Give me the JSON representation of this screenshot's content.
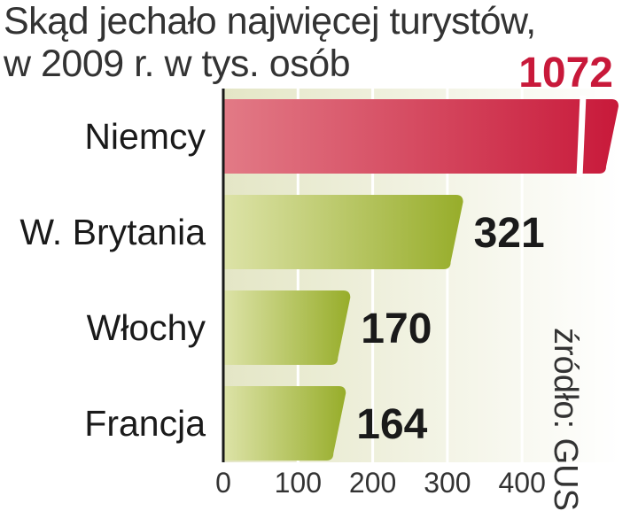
{
  "header": {
    "title_line1": "Skąd jechało najwięcej turystów,",
    "title_line2": "w 2009 r. w tys. osób"
  },
  "source": "źródło: GUS",
  "colors": {
    "highlight_bar": "#c8193a",
    "bar": "#9aaf2c",
    "highlight_label": "#c8193a",
    "label": "#1a1a1a"
  },
  "chart_data": {
    "type": "bar",
    "orientation": "horizontal",
    "title": "Skąd jechało najwięcej turystów, w 2009 r. w tys. osób",
    "categories": [
      "Niemcy",
      "W. Brytania",
      "Włochy",
      "Francja"
    ],
    "values": [
      1072,
      321,
      170,
      164
    ],
    "value_labels": [
      "1072",
      "321",
      "170",
      "164"
    ],
    "highlight_index": 0,
    "axis_break": true,
    "xlim": [
      0,
      500
    ],
    "xticks": [
      0,
      100,
      200,
      300,
      400
    ],
    "xtick_labels": [
      "0",
      "100",
      "200",
      "300",
      "400"
    ],
    "grid": true,
    "legend": "none"
  }
}
